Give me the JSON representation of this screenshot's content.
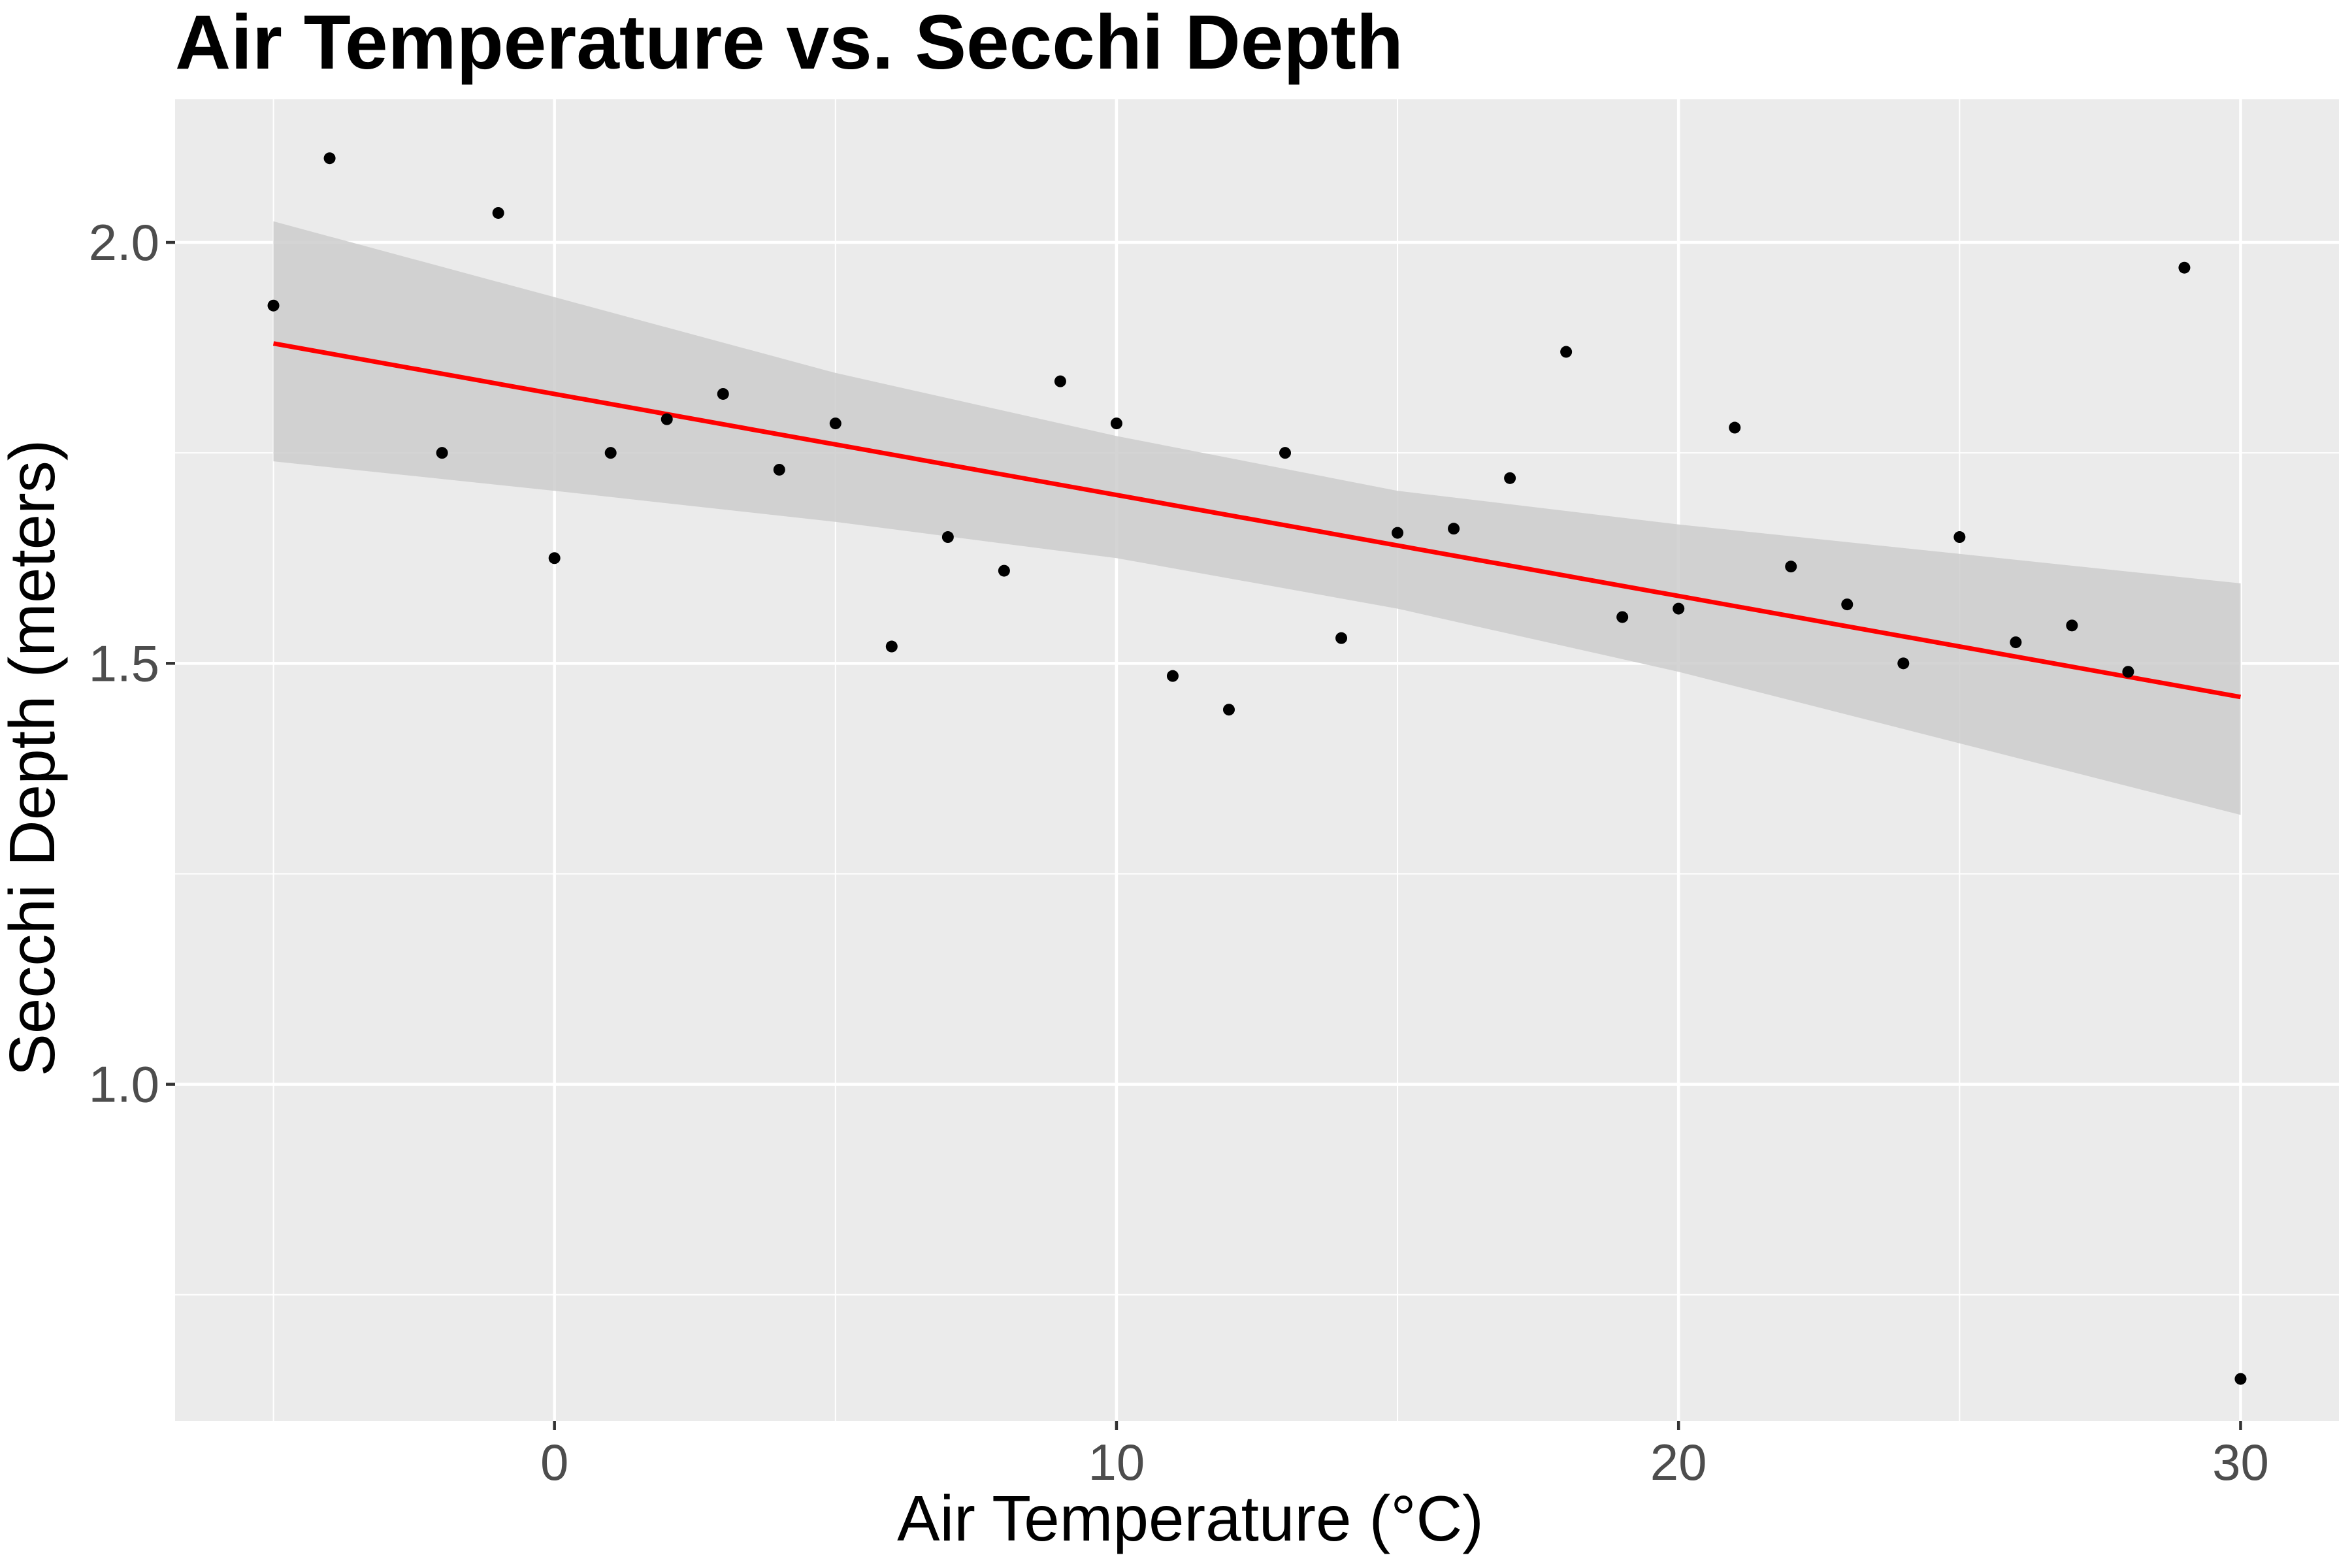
{
  "chart_data": {
    "type": "scatter",
    "title": "Air Temperature vs. Secchi Depth",
    "xlabel": "Air Temperature (°C)",
    "ylabel": "Secchi Depth (meters)",
    "xlim": [
      -6.75,
      31.75
    ],
    "ylim": [
      0.6,
      2.17
    ],
    "x_ticks": [
      0,
      10,
      20,
      30
    ],
    "x_tick_labels": [
      "0",
      "10",
      "20",
      "30"
    ],
    "x_minor_ticks": [
      -5,
      5,
      15,
      25
    ],
    "y_ticks": [
      1.0,
      1.5,
      2.0
    ],
    "y_tick_labels": [
      "1.0",
      "1.5",
      "2.0"
    ],
    "y_minor_ticks": [
      0.75,
      1.25,
      1.75
    ],
    "grid": true,
    "legend": "none",
    "points": [
      {
        "x": -5,
        "y": 1.925
      },
      {
        "x": -4,
        "y": 2.1
      },
      {
        "x": -2,
        "y": 1.75
      },
      {
        "x": -1,
        "y": 2.035
      },
      {
        "x": 0,
        "y": 1.625
      },
      {
        "x": 1,
        "y": 1.75
      },
      {
        "x": 2,
        "y": 1.79
      },
      {
        "x": 3,
        "y": 1.82
      },
      {
        "x": 4,
        "y": 1.73
      },
      {
        "x": 5,
        "y": 1.785
      },
      {
        "x": 6,
        "y": 1.52
      },
      {
        "x": 7,
        "y": 1.65
      },
      {
        "x": 8,
        "y": 1.61
      },
      {
        "x": 9,
        "y": 1.835
      },
      {
        "x": 10,
        "y": 1.785
      },
      {
        "x": 11,
        "y": 1.485
      },
      {
        "x": 12,
        "y": 1.445
      },
      {
        "x": 13,
        "y": 1.75
      },
      {
        "x": 14,
        "y": 1.53
      },
      {
        "x": 15,
        "y": 1.655
      },
      {
        "x": 16,
        "y": 1.66
      },
      {
        "x": 17,
        "y": 1.72
      },
      {
        "x": 18,
        "y": 1.87
      },
      {
        "x": 19,
        "y": 1.555
      },
      {
        "x": 20,
        "y": 1.565
      },
      {
        "x": 21,
        "y": 1.78
      },
      {
        "x": 22,
        "y": 1.615
      },
      {
        "x": 23,
        "y": 1.57
      },
      {
        "x": 24,
        "y": 1.5
      },
      {
        "x": 25,
        "y": 1.65
      },
      {
        "x": 26,
        "y": 1.525
      },
      {
        "x": 27,
        "y": 1.545
      },
      {
        "x": 28,
        "y": 1.49
      },
      {
        "x": 29,
        "y": 1.97
      },
      {
        "x": 30,
        "y": 0.65
      }
    ],
    "trend_line": {
      "type": "linear",
      "color": "#ff0000",
      "x": [
        -5,
        30
      ],
      "y": [
        1.88,
        1.46
      ]
    },
    "confidence_band": {
      "color": "#cccccc",
      "x": [
        -5,
        0,
        5,
        10,
        15,
        20,
        25,
        30
      ],
      "lower": [
        1.74,
        1.705,
        1.668,
        1.625,
        1.565,
        1.49,
        1.405,
        1.32
      ],
      "upper": [
        2.025,
        1.935,
        1.845,
        1.77,
        1.705,
        1.665,
        1.63,
        1.595
      ]
    },
    "colors": {
      "panel_background": "#ebebeb",
      "grid_major": "#ffffff",
      "points": "#000000"
    }
  }
}
